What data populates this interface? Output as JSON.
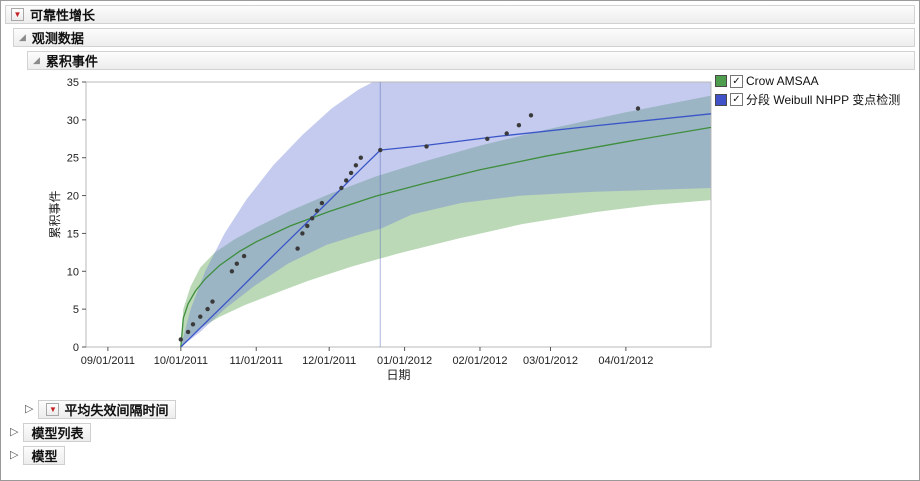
{
  "outline": {
    "root": {
      "label": "可靠性增长"
    },
    "observed": {
      "label": "观测数据"
    },
    "cumulative": {
      "label": "累积事件"
    },
    "mtbf": {
      "label": "平均失效间隔时间"
    },
    "model_list": {
      "label": "模型列表"
    },
    "model": {
      "label": "模型"
    }
  },
  "legend": {
    "items": [
      {
        "label": "Crow AMSAA",
        "checked": true,
        "color": "#4f9d4f"
      },
      {
        "label": "分段 Weibull NHPP 变点检测",
        "checked": true,
        "color": "#4152c8"
      }
    ]
  },
  "chart_data": {
    "type": "line",
    "title": "累积事件",
    "xlabel": "日期",
    "ylabel": "累积事件",
    "x_unit": "days_since_2011-09-01",
    "xlim": [
      -9,
      248
    ],
    "ylim": [
      0,
      35
    ],
    "grid": false,
    "legend_position": "top-right-outside",
    "y_ticks": [
      0,
      5,
      10,
      15,
      20,
      25,
      30,
      35
    ],
    "x_ticks": [
      {
        "label": "09/01/2011",
        "day": 0
      },
      {
        "label": "10/01/2011",
        "day": 30
      },
      {
        "label": "11/01/2011",
        "day": 61
      },
      {
        "label": "12/01/2011",
        "day": 91
      },
      {
        "label": "01/01/2012",
        "day": 122
      },
      {
        "label": "02/01/2012",
        "day": 153
      },
      {
        "label": "03/01/2012",
        "day": 182
      },
      {
        "label": "04/01/2012",
        "day": 213
      }
    ],
    "observations": {
      "name": "累积事件",
      "color": "#3a3a3a",
      "points": [
        [
          30,
          1
        ],
        [
          33,
          2
        ],
        [
          35,
          3
        ],
        [
          38,
          4
        ],
        [
          41,
          5
        ],
        [
          43,
          6
        ],
        [
          51,
          10
        ],
        [
          53,
          11
        ],
        [
          56,
          12
        ],
        [
          78,
          13
        ],
        [
          80,
          15
        ],
        [
          82,
          16
        ],
        [
          84,
          17
        ],
        [
          86,
          18
        ],
        [
          88,
          19
        ],
        [
          96,
          21
        ],
        [
          98,
          22
        ],
        [
          100,
          23
        ],
        [
          102,
          24
        ],
        [
          104,
          25
        ],
        [
          112,
          26
        ],
        [
          131,
          26.5
        ],
        [
          156,
          27.5
        ],
        [
          164,
          28.2
        ],
        [
          169,
          29.3
        ],
        [
          174,
          30.6
        ],
        [
          218,
          31.5
        ]
      ]
    },
    "series": [
      {
        "name": "Crow AMSAA",
        "color": "#3e8e3e",
        "band_color": "rgba(105,170,95,0.45)",
        "line": [
          [
            30,
            0
          ],
          [
            31,
            3.8
          ],
          [
            33,
            5.7
          ],
          [
            36,
            7.4
          ],
          [
            40,
            9
          ],
          [
            46,
            10.8
          ],
          [
            54,
            12.6
          ],
          [
            61,
            13.9
          ],
          [
            75,
            16
          ],
          [
            91,
            17.9
          ],
          [
            110,
            19.9
          ],
          [
            130,
            21.6
          ],
          [
            153,
            23.4
          ],
          [
            180,
            25.2
          ],
          [
            213,
            27.1
          ],
          [
            248,
            29
          ]
        ],
        "band_upper": [
          [
            30,
            0
          ],
          [
            31,
            5
          ],
          [
            34,
            8
          ],
          [
            38,
            10.5
          ],
          [
            44,
            12.5
          ],
          [
            52,
            14.2
          ],
          [
            61,
            15.8
          ],
          [
            75,
            18
          ],
          [
            91,
            20.2
          ],
          [
            110,
            22.5
          ],
          [
            130,
            24.5
          ],
          [
            153,
            26.6
          ],
          [
            180,
            28.7
          ],
          [
            213,
            31
          ],
          [
            248,
            33.2
          ]
        ],
        "band_lower": [
          [
            30,
            0
          ],
          [
            33,
            1.2
          ],
          [
            38,
            2.5
          ],
          [
            46,
            4
          ],
          [
            56,
            5.5
          ],
          [
            68,
            7
          ],
          [
            82,
            8.7
          ],
          [
            100,
            10.6
          ],
          [
            120,
            12.4
          ],
          [
            145,
            14.4
          ],
          [
            170,
            16.2
          ],
          [
            200,
            17.8
          ],
          [
            225,
            18.8
          ],
          [
            248,
            19.4
          ]
        ]
      },
      {
        "name": "分段 Weibull NHPP 变点检测",
        "color": "#3a55c8",
        "band_color": "rgba(115,130,215,0.42)",
        "change_point_day": 112,
        "change_point_color": "rgba(90,110,190,0.5)",
        "line": [
          [
            30,
            0
          ],
          [
            50,
            6.3
          ],
          [
            70,
            12.7
          ],
          [
            90,
            19
          ],
          [
            105,
            23.8
          ],
          [
            112,
            26
          ],
          [
            130,
            26.6
          ],
          [
            160,
            27.8
          ],
          [
            200,
            29.2
          ],
          [
            248,
            30.8
          ]
        ],
        "band_upper": [
          [
            30,
            0
          ],
          [
            34,
            5
          ],
          [
            40,
            10
          ],
          [
            48,
            15
          ],
          [
            57,
            19.5
          ],
          [
            68,
            24
          ],
          [
            80,
            28
          ],
          [
            92,
            31.5
          ],
          [
            103,
            34
          ],
          [
            109,
            35
          ],
          [
            248,
            35
          ]
        ],
        "band_lower": [
          [
            30,
            0
          ],
          [
            38,
            2
          ],
          [
            48,
            5
          ],
          [
            60,
            8
          ],
          [
            74,
            11
          ],
          [
            90,
            13.5
          ],
          [
            105,
            15
          ],
          [
            112,
            15.6
          ],
          [
            125,
            17.5
          ],
          [
            145,
            19
          ],
          [
            170,
            20
          ],
          [
            200,
            20.5
          ],
          [
            248,
            21
          ]
        ]
      }
    ]
  }
}
